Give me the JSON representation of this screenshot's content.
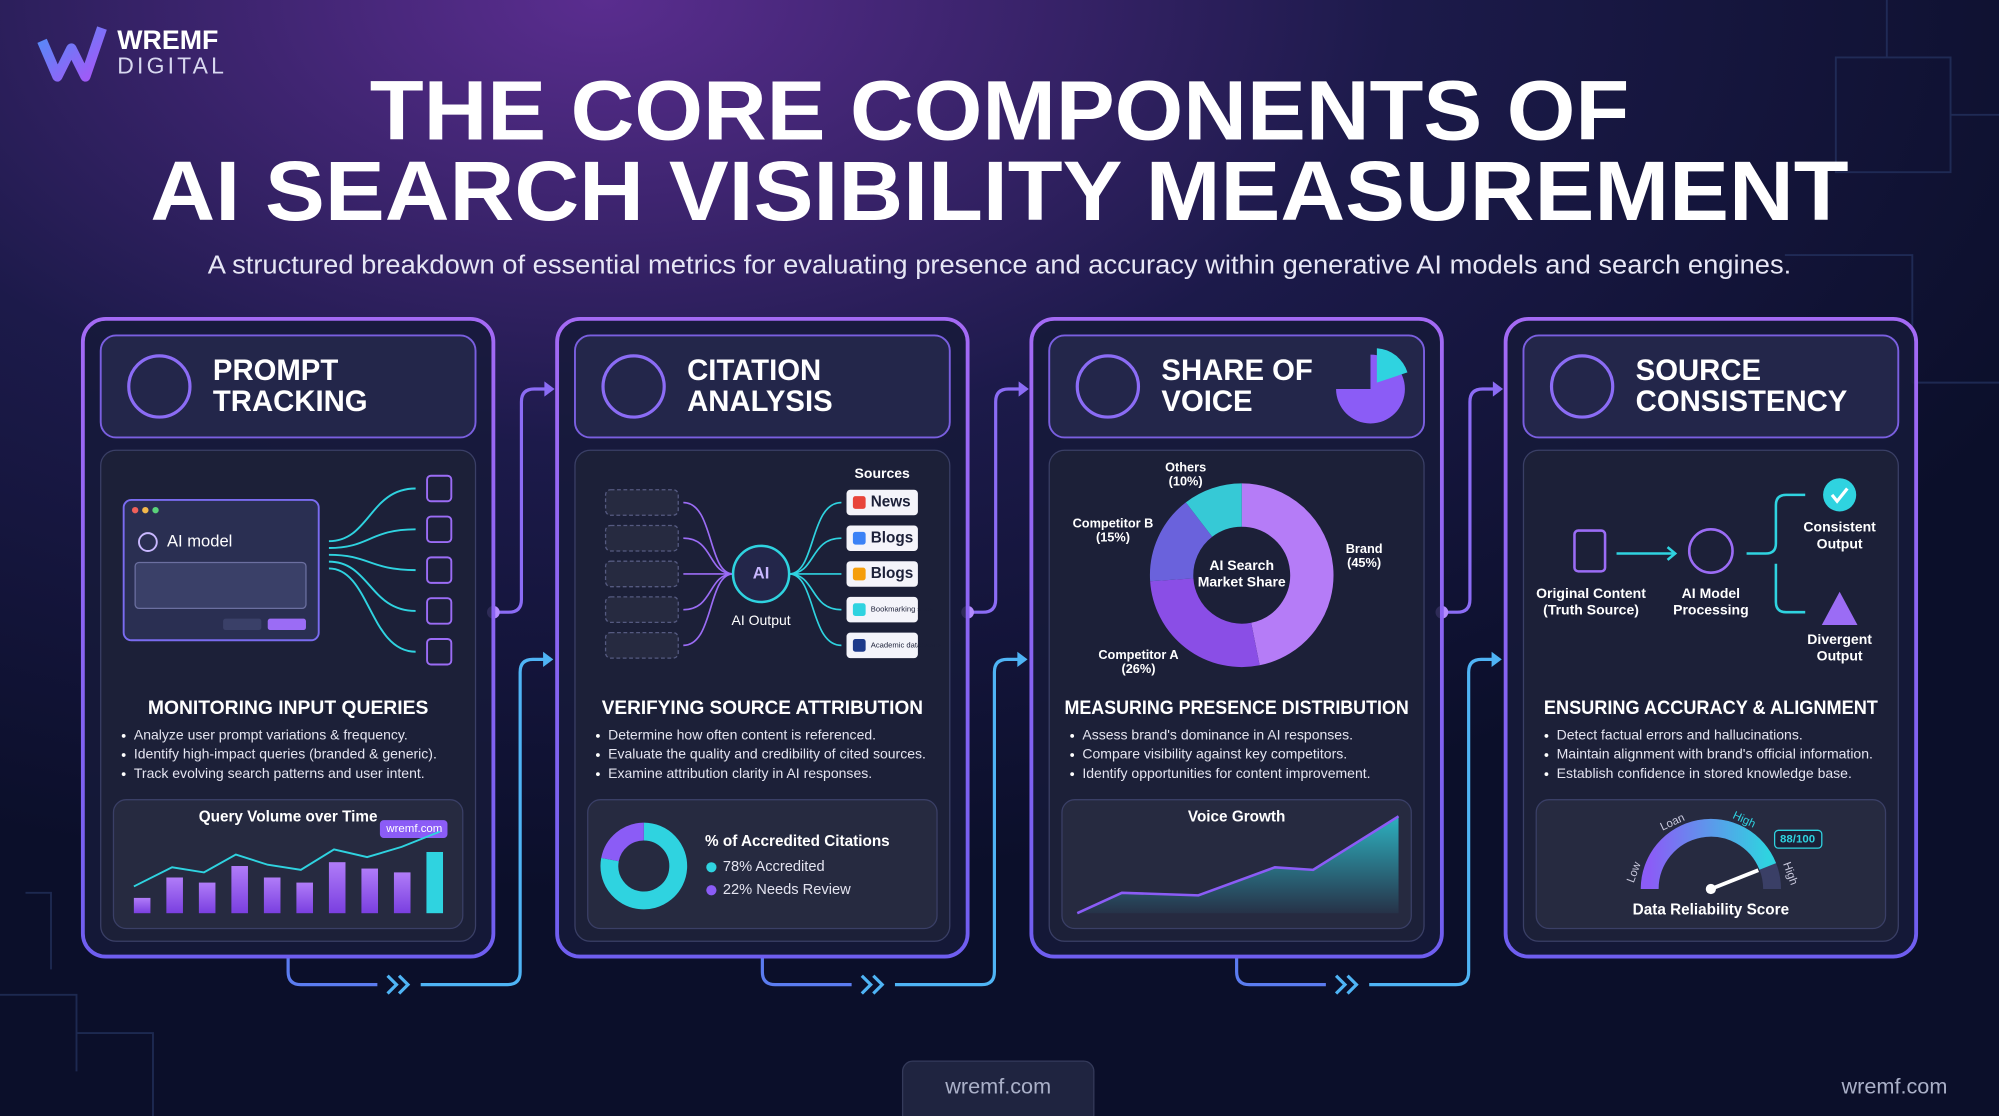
{
  "logo": {
    "name": "WREMF",
    "tagline": "DIGITAL"
  },
  "header": {
    "title": [
      "THE CORE COMPONENTS OF",
      "AI SEARCH VISIBILITY MEASUREMENT"
    ],
    "subtitle": "A structured breakdown of essential metrics for evaluating presence and accuracy within generative AI models and search engines."
  },
  "panels": [
    {
      "title": [
        "PROMPT",
        "TRACKING"
      ],
      "heading": "MONITORING INPUT QUERIES",
      "bullets": [
        "Analyze user prompt variations & frequency.",
        "Identify high-impact queries (branded & generic).",
        "Track evolving search patterns and user intent."
      ],
      "diagram": {
        "window_label": "AI model"
      },
      "chart": {
        "title": "Query Volume over Time",
        "tag": "wremf.com"
      }
    },
    {
      "title": [
        "CITATION",
        "ANALYSIS"
      ],
      "heading": "VERIFYING SOURCE ATTRIBUTION",
      "bullets": [
        "Determine how often content is referenced.",
        "Evaluate the quality and credibility of cited sources.",
        "Examine attribution clarity in AI responses."
      ],
      "diagram": {
        "center": "AI",
        "output_label": "AI Output",
        "sources_title": "Sources",
        "sources": [
          "News",
          "Blogs",
          "Blogs",
          "Bookmarking sites",
          "Academic databases"
        ]
      },
      "chart": {
        "title": "% of Accredited Citations",
        "segments": [
          {
            "value": 78,
            "label": "78% Accredited",
            "color": "#2fd3e0"
          },
          {
            "value": 22,
            "label": "22% Needs Review",
            "color": "#8b5cf6"
          }
        ]
      }
    },
    {
      "title": [
        "SHARE OF",
        "VOICE"
      ],
      "heading": "MEASURING PRESENCE DISTRIBUTION",
      "bullets": [
        "Assess brand's dominance in AI responses.",
        "Compare visibility against key competitors.",
        "Identify opportunities for content improvement."
      ],
      "diagram": {
        "center": [
          "AI Search",
          "Market Share"
        ],
        "segments": [
          {
            "name": "Brand",
            "value": 45,
            "label": "(45%)",
            "color": "#b57cf7"
          },
          {
            "name": "Competitor A",
            "value": 26,
            "label": "(26%)",
            "color": "#8a4ee6"
          },
          {
            "name": "Competitor B",
            "value": 15,
            "label": "(15%)",
            "color": "#6a62dc"
          },
          {
            "name": "Others",
            "value": 10,
            "label": "(10%)",
            "color": "#36c9d6"
          }
        ]
      },
      "chart": {
        "title": "Voice Growth"
      }
    },
    {
      "title": [
        "SOURCE",
        "CONSISTENCY"
      ],
      "heading": "ENSURING ACCURACY & ALIGNMENT",
      "bullets": [
        "Detect factual errors and hallucinations.",
        "Maintain alignment with brand's official information.",
        "Establish confidence in stored knowledge base."
      ],
      "diagram": {
        "nodes": [
          [
            "Original Content",
            "(Truth Source)"
          ],
          [
            "AI Model",
            "Processing"
          ],
          [
            "Consistent",
            "Output"
          ],
          [
            "Divergent",
            "Output"
          ]
        ]
      },
      "chart": {
        "title": "Data Reliability Score",
        "score": {
          "value": 88,
          "max": 100,
          "label": "88/100"
        },
        "scale_labels": [
          "Low",
          "Loan",
          "High",
          "High"
        ]
      }
    }
  ],
  "footer": {
    "center": "wremf.com",
    "right": "wremf.com"
  }
}
